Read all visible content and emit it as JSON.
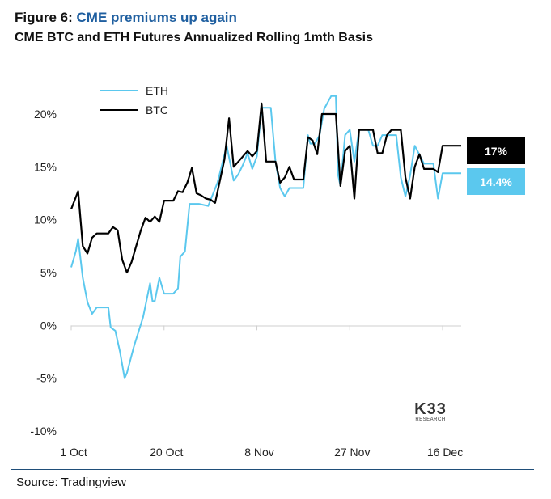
{
  "figure": {
    "label": "Figure 6:",
    "highlight": "CME premiums up again",
    "subtitle": "CME BTC and ETH Futures Annualized Rolling 1mth Basis"
  },
  "source": "Source: Tradingview",
  "logo": {
    "main": "K33",
    "sub": "RESEARCH"
  },
  "chart_data": {
    "type": "line",
    "title": "CME BTC and ETH Futures Annualized Rolling 1mth Basis",
    "ylim": [
      -10,
      21
    ],
    "y_ticks": [
      -10,
      -5,
      0,
      5,
      10,
      15,
      20
    ],
    "y_tick_labels": [
      "-10%",
      "-5%",
      "0%",
      "5%",
      "10%",
      "15%",
      "20%"
    ],
    "x_domain": [
      0,
      84
    ],
    "x_ticks": [
      0,
      20,
      40,
      60,
      80
    ],
    "x_tick_labels": [
      "1 Oct",
      "20 Oct",
      "8 Nov",
      "27 Nov",
      "16 Dec"
    ],
    "legend_position": "top-left",
    "series": [
      {
        "name": "ETH",
        "color": "#5bc8ee",
        "end_label": "14.4%",
        "x": [
          0,
          1,
          1.5,
          2.5,
          3.5,
          4.5,
          5.5,
          7,
          8,
          8.5,
          9.5,
          10.5,
          11.5,
          12,
          13.5,
          15.5,
          17,
          17.5,
          18,
          19,
          20,
          21,
          22,
          23,
          23.5,
          24.5,
          25.5,
          26.5,
          27.5,
          28.5,
          29.5,
          31.5,
          33.5,
          35,
          36,
          37,
          38,
          39,
          40,
          41,
          42,
          43,
          44,
          45,
          46,
          47,
          48,
          49,
          50,
          51,
          51.5,
          52.5,
          53.5,
          54.5,
          56,
          57,
          57.5,
          58,
          59,
          60,
          61,
          62,
          63,
          64,
          65,
          66,
          67,
          68,
          69,
          70,
          71,
          72,
          73,
          74,
          76,
          77,
          78,
          79,
          80,
          81,
          82,
          83,
          84
        ],
        "values": [
          5.5,
          7,
          8.2,
          4.5,
          2.2,
          1.1,
          1.7,
          1.7,
          1.7,
          -0.2,
          -0.5,
          -2.5,
          -5,
          -4.5,
          -2,
          0.8,
          4,
          2.3,
          2.3,
          4.5,
          3,
          3,
          3,
          3.5,
          6.5,
          7,
          11.5,
          11.5,
          11.5,
          11.4,
          11.3,
          13.5,
          17,
          13.7,
          14.3,
          15.2,
          16.3,
          14.8,
          16,
          20.6,
          20.6,
          20.6,
          15.5,
          13,
          12.2,
          13,
          13,
          13,
          13,
          18,
          17.2,
          17.2,
          18,
          20.5,
          21.7,
          21.7,
          14.2,
          13.2,
          18,
          18.5,
          15.5,
          18.5,
          18.5,
          18.5,
          17,
          17,
          18,
          18,
          18,
          18,
          14,
          12.2,
          14.2,
          17,
          15.3,
          15.3,
          15.3,
          12,
          14.4,
          14.4,
          14.4,
          14.4,
          14.4
        ]
      },
      {
        "name": "BTC",
        "color": "#000000",
        "end_label": "17%",
        "x": [
          0,
          1.5,
          2.5,
          3.5,
          4.5,
          5.5,
          7,
          8,
          9,
          10,
          11,
          12,
          13,
          14,
          15,
          16,
          17,
          18,
          19,
          20,
          21,
          22,
          23,
          24,
          25,
          26,
          27,
          28,
          29,
          30,
          31,
          33,
          34,
          35,
          36,
          37,
          38,
          39,
          40,
          41,
          42,
          43,
          44,
          45,
          46,
          47,
          48,
          49,
          50,
          51,
          52,
          53,
          54,
          55,
          56,
          57,
          58,
          59,
          60,
          61,
          62,
          63,
          64,
          65,
          66,
          67,
          68,
          69,
          70,
          71,
          72,
          73,
          74,
          75,
          76,
          77,
          78,
          79,
          80,
          81,
          82,
          83,
          84
        ],
        "values": [
          11,
          12.7,
          7.5,
          6.8,
          8.3,
          8.7,
          8.7,
          8.7,
          9.3,
          9,
          6.2,
          5,
          6,
          7.5,
          9,
          10.2,
          9.8,
          10.3,
          9.8,
          11.8,
          11.8,
          11.8,
          12.7,
          12.6,
          13.5,
          14.9,
          12.5,
          12.3,
          12,
          11.9,
          11.6,
          15.7,
          19.6,
          15,
          15.5,
          16,
          16.5,
          16,
          16.5,
          21,
          15.5,
          15.5,
          15.5,
          13.5,
          14,
          15,
          13.8,
          13.8,
          13.8,
          17.8,
          17.5,
          16.2,
          20,
          20,
          20,
          20,
          13.2,
          16.5,
          17,
          12,
          18.5,
          18.5,
          18.5,
          18.5,
          16.3,
          16.3,
          18,
          18.5,
          18.5,
          18.5,
          14,
          12,
          15,
          16.2,
          14.8,
          14.8,
          14.8,
          14.5,
          17,
          17,
          17,
          17,
          17
        ]
      }
    ]
  }
}
